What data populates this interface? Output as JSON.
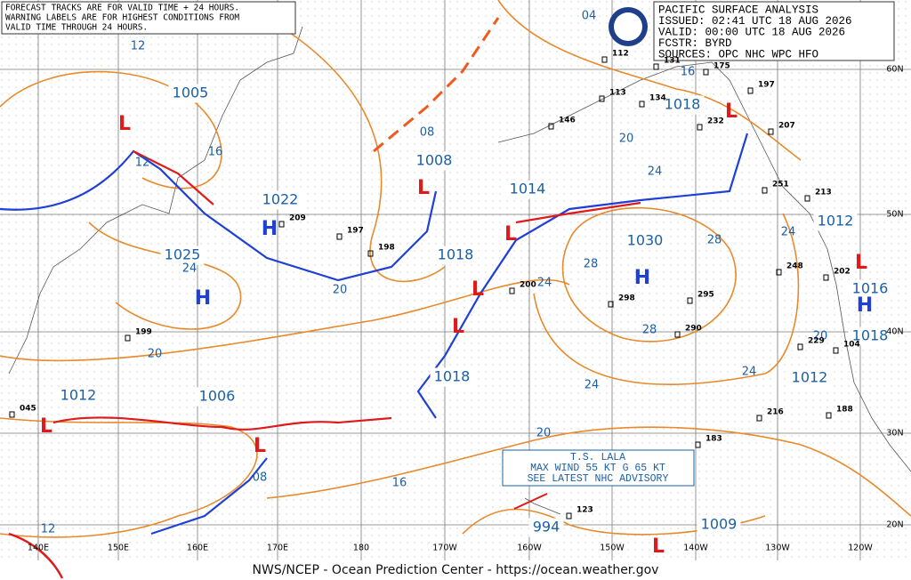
{
  "header_note": [
    "FORECAST TRACKS ARE FOR VALID TIME + 24 HOURS.",
    "WARNING LABELS ARE FOR HIGHEST CONDITIONS FROM",
    "VALID TIME THROUGH 24 HOURS."
  ],
  "info_box": [
    "PACIFIC SURFACE ANALYSIS",
    "ISSUED: 02:41 UTC 18 AUG 2026",
    "VALID:  00:00 UTC 18 AUG 2026",
    "FCSTR:  BYRD",
    "SOURCES: OPC NHC WPC HFO"
  ],
  "advisory": [
    "T.S. LALA",
    "MAX WIND 55 KT G 65 KT",
    "SEE LATEST NHC ADVISORY"
  ],
  "footer": "NWS/NCEP - Ocean Prediction Center - https://ocean.weather.gov",
  "pressure_labels": [
    "1005",
    "1022",
    "1025",
    "1008",
    "1014",
    "1018",
    "1030",
    "1018",
    "1012",
    "1016",
    "1018",
    "1012",
    "1018",
    "1006",
    "1012",
    "994",
    "1009"
  ],
  "highs": [
    "H",
    "H",
    "H",
    "H"
  ],
  "lows": [
    "L",
    "L",
    "L",
    "L",
    "L",
    "L",
    "L",
    "L",
    "L",
    "L"
  ],
  "isobar_labels": [
    "12",
    "16",
    "12",
    "24",
    "20",
    "08",
    "04",
    "16",
    "20",
    "24",
    "28",
    "28",
    "24",
    "24",
    "28",
    "24",
    "24",
    "20",
    "20",
    "16",
    "08",
    "12",
    "20"
  ],
  "lon_labels": [
    "140E",
    "150E",
    "160E",
    "170E",
    "180",
    "170W",
    "160W",
    "150W",
    "140W",
    "130W",
    "120W"
  ],
  "lat_labels": [
    "60N",
    "50N",
    "40N",
    "30N",
    "20N"
  ],
  "stations": [
    "209",
    "197",
    "198",
    "200",
    "298",
    "295",
    "290",
    "216",
    "188",
    "183",
    "123",
    "248",
    "202",
    "213",
    "207",
    "197",
    "175",
    "146",
    "134",
    "232",
    "113",
    "112",
    "131",
    "199",
    "045",
    "251",
    "229",
    "104"
  ]
}
